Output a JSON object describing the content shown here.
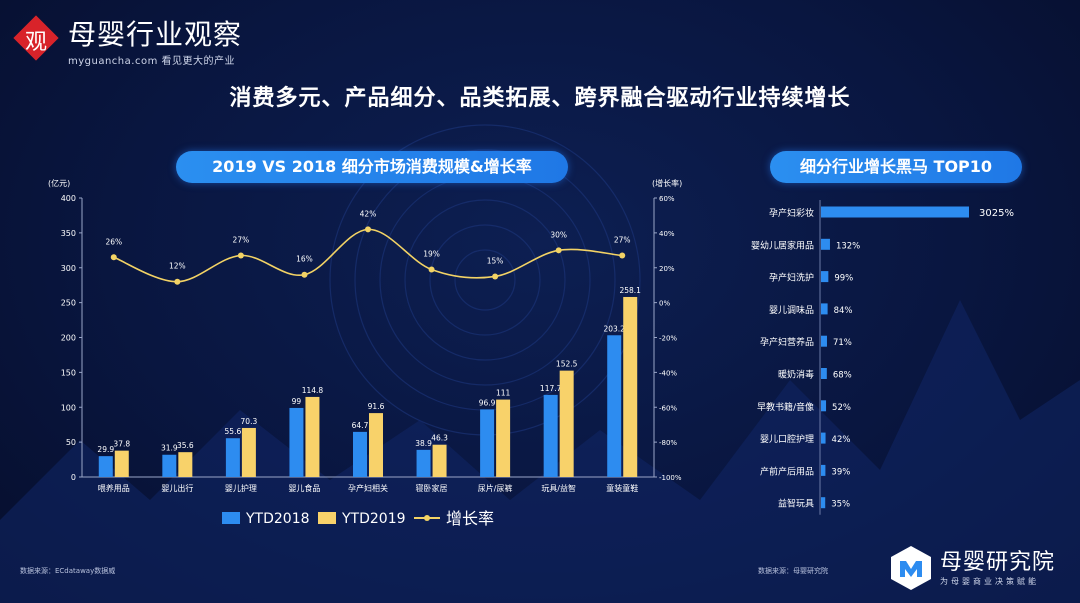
{
  "logo": {
    "mark": "观",
    "title": "母婴行业观察",
    "subtitle": "myguancha.com 看见更大的产业"
  },
  "headline": "消费多元、产品细分、品类拓展、跨界融合驱动行业持续增长",
  "left_panel": {
    "title": "2019 VS 2018 细分市场消费规模&增长率",
    "source": "数据来源：ECdataway数据威"
  },
  "right_panel": {
    "title": "细分行业增长黑马 TOP10",
    "source": "数据来源：母婴研究院"
  },
  "brand": {
    "title": "母婴研究院",
    "subtitle": "为母婴商业决策赋能"
  },
  "colors": {
    "ytd2018": "#2d8cf0",
    "ytd2019": "#f8d26a",
    "growth": "#f3d365",
    "hbar": "#2d8cf0"
  },
  "chart_data": [
    {
      "type": "bar",
      "title": "2019 VS 2018 细分市场消费规模&增长率",
      "ylabel": "(亿元)",
      "y2label": "(增长率)",
      "ylim": [
        0,
        400
      ],
      "y_ticks": [
        "0",
        "50",
        "100",
        "150",
        "200",
        "250",
        "300",
        "350",
        "400"
      ],
      "y2lim": [
        -100,
        60
      ],
      "y2_ticks": [
        "-100%",
        "-80%",
        "-60%",
        "-40%",
        "-20%",
        "0%",
        "20%",
        "40%",
        "60%"
      ],
      "categories": [
        "喂养用品",
        "婴儿出行",
        "婴儿护理",
        "婴儿食品",
        "孕产妇相关",
        "寝卧家居",
        "尿片/尿裤",
        "玩具/益智",
        "童装童鞋"
      ],
      "series": [
        {
          "name": "YTD2018",
          "values": [
            29.9,
            31.9,
            55.6,
            99,
            64.7,
            38.9,
            96.9,
            117.7,
            203.2
          ],
          "labels": [
            "29.9",
            "31.9",
            "55.6",
            "99",
            "64.7",
            "38.9",
            "96.9",
            "117.7",
            "203.2"
          ]
        },
        {
          "name": "YTD2019",
          "values": [
            37.8,
            35.6,
            70.3,
            114.8,
            91.6,
            46.3,
            111,
            152.5,
            258.1
          ],
          "labels": [
            "37.8",
            "35.6",
            "70.3",
            "114.8",
            "91.6",
            "46.3",
            "111",
            "152.5",
            "258.1"
          ]
        },
        {
          "name": "增长率",
          "type": "line",
          "axis": "right",
          "values": [
            26,
            12,
            27,
            16,
            42,
            19,
            15,
            30,
            27
          ],
          "labels": [
            "26%",
            "12%",
            "27%",
            "16%",
            "42%",
            "19%",
            "15%",
            "30%",
            "27%"
          ]
        }
      ],
      "legend": {
        "position": "bottom",
        "items": [
          "YTD2018",
          "YTD2019",
          "增长率"
        ]
      }
    },
    {
      "type": "bar",
      "orientation": "horizontal",
      "title": "细分行业增长黑马 TOP10",
      "categories": [
        "孕产妇彩妆",
        "婴幼儿居家用品",
        "孕产妇洗护",
        "婴儿调味品",
        "孕产妇营养品",
        "暖奶消毒",
        "早教书籍/音像",
        "婴儿口腔护理",
        "产前产后用品",
        "益智玩具"
      ],
      "values": [
        3025,
        132,
        99,
        84,
        71,
        68,
        52,
        42,
        39,
        35
      ],
      "labels": [
        "3025%",
        "132%",
        "99%",
        "84%",
        "71%",
        "68%",
        "52%",
        "42%",
        "39%",
        "35%"
      ]
    }
  ]
}
